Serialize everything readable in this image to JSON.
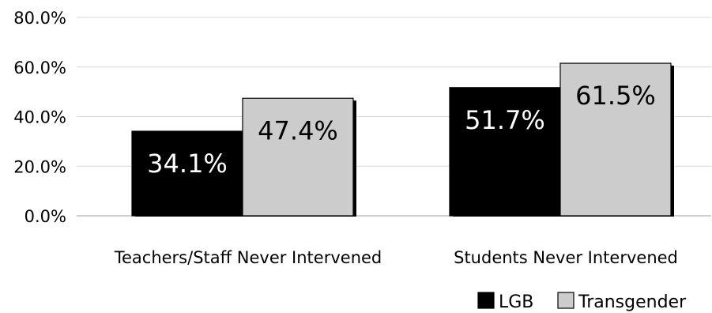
{
  "chart_data": {
    "type": "bar",
    "categories": [
      "Teachers/Staff Never Intervened",
      "Students Never Intervened"
    ],
    "series": [
      {
        "name": "LGB",
        "values": [
          34.1,
          51.7
        ],
        "labels": [
          "34.1%",
          "51.7%"
        ],
        "color": "#000000",
        "label_color": "#ffffff"
      },
      {
        "name": "Transgender",
        "values": [
          47.4,
          61.5
        ],
        "labels": [
          "47.4%",
          "61.5%"
        ],
        "color": "#cccccc",
        "label_color": "#000000"
      }
    ],
    "ylim": [
      0,
      80
    ],
    "yticks": [
      "0.0%",
      "20.0%",
      "40.0%",
      "60.0%",
      "80.0%"
    ],
    "grid": true,
    "legend_position": "bottom-right",
    "title": "",
    "xlabel": "",
    "ylabel": ""
  }
}
